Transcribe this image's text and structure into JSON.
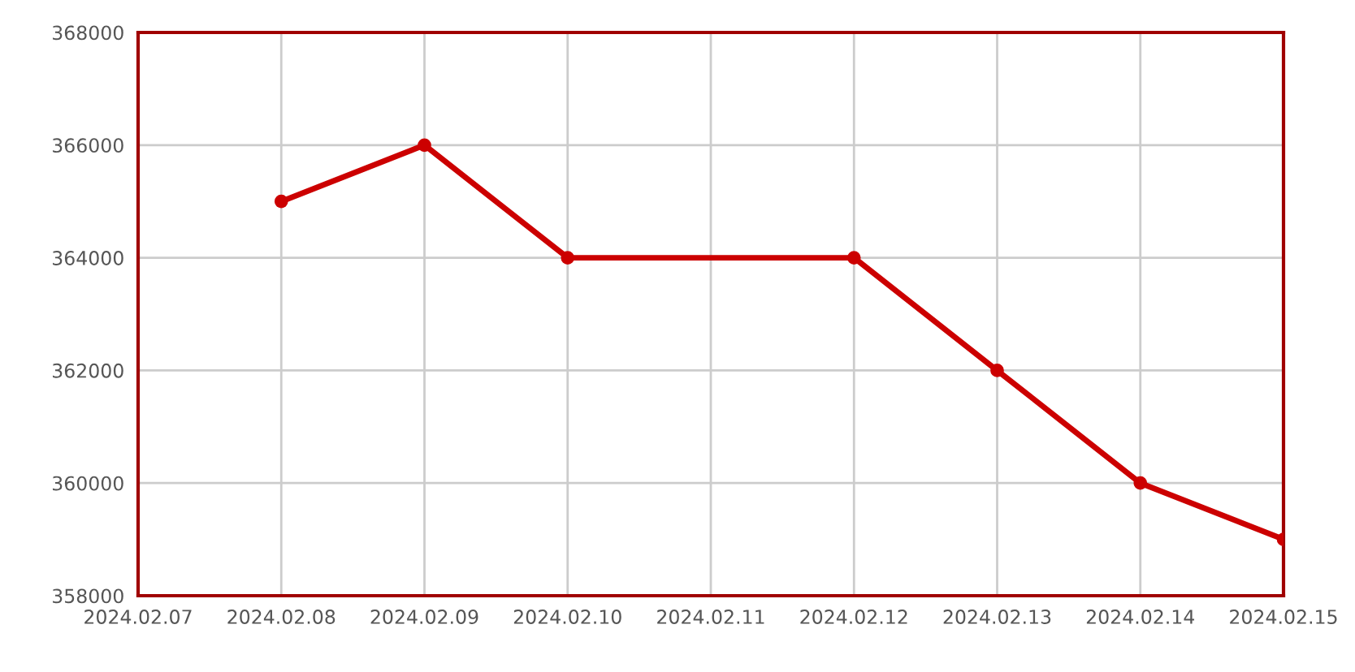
{
  "chart_data": {
    "type": "line",
    "x": [
      "2024-02-08",
      "2024-02-09",
      "2024-02-10",
      "2024-02-12",
      "2024-02-13",
      "2024-02-14",
      "2024-02-15"
    ],
    "series": [
      {
        "color": "#cc0000",
        "values": [
          365000,
          366000,
          364000,
          364000,
          362000,
          360000,
          359000
        ]
      }
    ],
    "xlim": [
      "2024-02-07",
      "2024-02-15"
    ],
    "xticks": [
      {
        "value": "2024-02-07",
        "label": "2024.02.07"
      },
      {
        "value": "2024-02-08",
        "label": "2024.02.08"
      },
      {
        "value": "2024-02-09",
        "label": "2024.02.09"
      },
      {
        "value": "2024-02-10",
        "label": "2024.02.10"
      },
      {
        "value": "2024-02-11",
        "label": "2024.02.11"
      },
      {
        "value": "2024-02-12",
        "label": "2024.02.12"
      },
      {
        "value": "2024-02-13",
        "label": "2024.02.13"
      },
      {
        "value": "2024-02-14",
        "label": "2024.02.14"
      },
      {
        "value": "2024-02-15",
        "label": "2024.02.15"
      }
    ],
    "ylim": [
      358000,
      368000
    ],
    "yticks": [
      358000,
      360000,
      362000,
      364000,
      366000,
      368000
    ],
    "grid": true,
    "marker": "circle",
    "line_style": "solid"
  }
}
